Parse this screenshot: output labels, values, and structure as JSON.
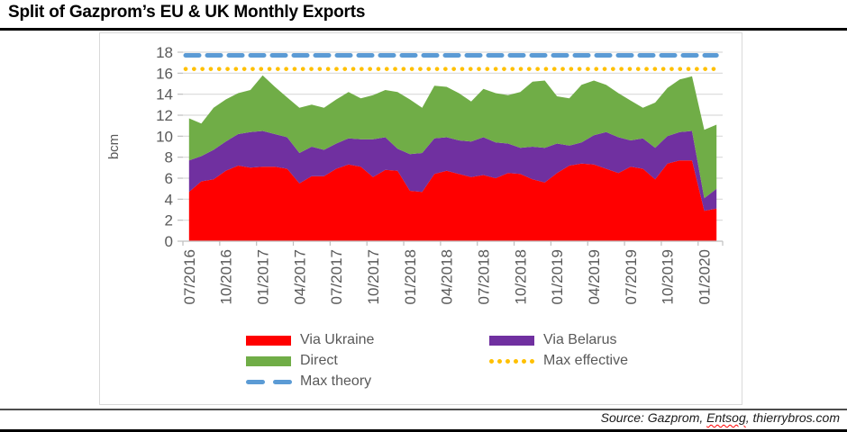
{
  "title": "Split of Gazprom’s EU & UK Monthly Exports",
  "source": {
    "part1": "Source: Gazprom, ",
    "flagged_word": "Entsog",
    "part2": ", thierrybros.com"
  },
  "legend": {
    "items": [
      {
        "label": "Via Ukraine",
        "swatch": "rect",
        "color": "#FF0000"
      },
      {
        "label": "Via Belarus",
        "swatch": "rect",
        "color": "#7030A0"
      },
      {
        "label": "Direct",
        "swatch": "rect",
        "color": "#70AD47"
      },
      {
        "label": "Max effective",
        "swatch": "dots",
        "color": "#FFC000"
      },
      {
        "label": "Max theory",
        "swatch": "dashes",
        "color": "#5B9BD5"
      }
    ]
  },
  "chart_data": {
    "type": "area",
    "stacked": true,
    "title": "Split of Gazprom’s EU & UK Monthly Exports",
    "xlabel": "",
    "ylabel": "bcm",
    "ylim": [
      0,
      18
    ],
    "ytick_step": 2,
    "grid": true,
    "legend_position": "bottom",
    "grid_color": "#D9D9D9",
    "axis_color": "#BFBFBF",
    "tick_label_color": "#595959",
    "x": [
      "07/2016",
      "08/2016",
      "09/2016",
      "10/2016",
      "11/2016",
      "12/2016",
      "01/2017",
      "02/2017",
      "03/2017",
      "04/2017",
      "05/2017",
      "06/2017",
      "07/2017",
      "08/2017",
      "09/2017",
      "10/2017",
      "11/2017",
      "12/2017",
      "01/2018",
      "02/2018",
      "03/2018",
      "04/2018",
      "05/2018",
      "06/2018",
      "07/2018",
      "08/2018",
      "09/2018",
      "10/2018",
      "11/2018",
      "12/2018",
      "01/2019",
      "02/2019",
      "03/2019",
      "04/2019",
      "05/2019",
      "06/2019",
      "07/2019",
      "08/2019",
      "09/2019",
      "10/2019",
      "11/2019",
      "12/2019",
      "01/2020",
      "02/2020"
    ],
    "x_tick_labels": [
      "07/2016",
      "10/2016",
      "01/2017",
      "04/2017",
      "07/2017",
      "10/2017",
      "01/2018",
      "04/2018",
      "07/2018",
      "10/2018",
      "01/2019",
      "04/2019",
      "07/2019",
      "10/2019",
      "01/2020"
    ],
    "series": [
      {
        "name": "Via Ukraine",
        "color": "#FF0000",
        "values": [
          4.7,
          5.7,
          5.9,
          6.7,
          7.2,
          7.0,
          7.1,
          7.1,
          6.9,
          5.5,
          6.2,
          6.2,
          6.9,
          7.3,
          7.1,
          6.1,
          6.8,
          6.7,
          4.8,
          4.7,
          6.4,
          6.7,
          6.4,
          6.1,
          6.3,
          6.0,
          6.5,
          6.4,
          5.9,
          5.6,
          6.5,
          7.2,
          7.4,
          7.3,
          6.9,
          6.5,
          7.1,
          6.9,
          5.9,
          7.4,
          7.7,
          7.7,
          2.9,
          3.1
        ]
      },
      {
        "name": "Via Belarus",
        "color": "#7030A0",
        "values": [
          3.0,
          2.4,
          2.8,
          2.8,
          3.0,
          3.4,
          3.4,
          3.1,
          3.0,
          2.9,
          2.8,
          2.5,
          2.4,
          2.5,
          2.6,
          3.6,
          3.1,
          2.1,
          3.5,
          3.7,
          3.4,
          3.2,
          3.2,
          3.4,
          3.6,
          3.4,
          2.8,
          2.5,
          3.1,
          3.3,
          2.8,
          1.9,
          2.0,
          2.8,
          3.5,
          3.4,
          2.5,
          2.9,
          3.0,
          2.6,
          2.7,
          2.8,
          1.2,
          1.9
        ]
      },
      {
        "name": "Direct",
        "color": "#70AD47",
        "values": [
          4.0,
          3.1,
          4.0,
          4.0,
          3.9,
          4.0,
          5.3,
          4.5,
          3.8,
          4.3,
          4.0,
          4.0,
          4.2,
          4.4,
          3.9,
          4.2,
          4.5,
          5.4,
          5.2,
          4.3,
          5.0,
          4.8,
          4.5,
          3.8,
          4.6,
          4.7,
          4.6,
          5.3,
          6.2,
          6.4,
          4.5,
          4.5,
          5.5,
          5.2,
          4.5,
          4.2,
          3.8,
          2.9,
          4.3,
          4.6,
          5.0,
          5.2,
          6.5,
          6.1
        ]
      }
    ],
    "ref_lines": [
      {
        "name": "Max effective",
        "value": 16.4,
        "style": "dotted",
        "color": "#FFC000"
      },
      {
        "name": "Max theory",
        "value": 17.7,
        "style": "dashed",
        "color": "#5B9BD5"
      }
    ]
  }
}
